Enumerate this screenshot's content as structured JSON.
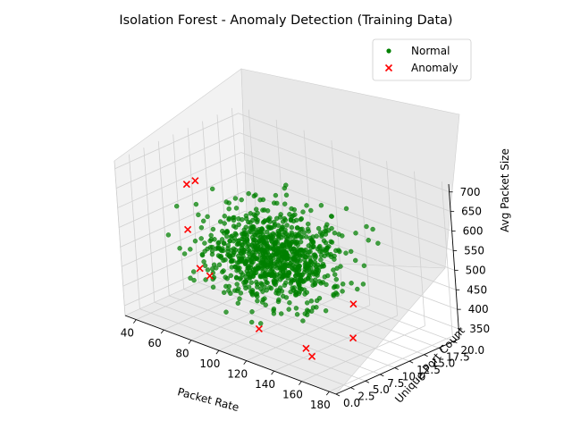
{
  "chart_data": {
    "type": "scatter3d",
    "title": "Isolation Forest - Anomaly Detection (Training Data)",
    "xlabel": "Packet Rate",
    "ylabel": "Unique Port Count",
    "zlabel": "Avg Packet Size",
    "xlim": [
      32,
      185
    ],
    "ylim": [
      0,
      21
    ],
    "zlim": [
      325,
      720
    ],
    "x_ticks": [
      40,
      60,
      80,
      100,
      120,
      140,
      160,
      180
    ],
    "y_ticks": [
      0.0,
      2.5,
      5.0,
      7.5,
      10.0,
      12.5,
      15.0,
      17.5,
      20.0
    ],
    "z_ticks": [
      350,
      400,
      450,
      500,
      550,
      600,
      650,
      700
    ],
    "legend_position": "top-right",
    "grid": true,
    "series": [
      {
        "name": "Normal",
        "marker": "circle",
        "color": "#008000",
        "n_points": 950,
        "sample_note": "",
        "points": [
          [
            101.5,
            9.3,
            502
          ],
          [
            106.2,
            10.6,
            455
          ],
          [
            94.8,
            11.2,
            478
          ],
          [
            112.3,
            8.9,
            521
          ],
          [
            99.1,
            12.4,
            489
          ],
          [
            88.6,
            9.7,
            512
          ],
          [
            115.4,
            10.1,
            468
          ],
          [
            103.7,
            7.8,
            495
          ],
          [
            97.2,
            11.8,
            533
          ],
          [
            109.9,
            9.4,
            441
          ],
          [
            92.3,
            10.9,
            506
          ],
          [
            118.8,
            11.5,
            488
          ],
          [
            85.4,
            8.6,
            470
          ],
          [
            104.5,
            13.1,
            517
          ],
          [
            111.1,
            9.9,
            549
          ],
          [
            96.7,
            7.2,
            462
          ],
          [
            100.9,
            10.4,
            584
          ],
          [
            122.6,
            9.1,
            497
          ],
          [
            90.2,
            12.7,
            452
          ],
          [
            107.8,
            11.3,
            530
          ]
        ]
      },
      {
        "name": "Anomaly",
        "marker": "x",
        "color": "#ff0000",
        "points": [
          [
            35,
            11,
            590
          ],
          [
            38,
            10,
            485
          ],
          [
            37,
            12,
            595
          ],
          [
            45,
            10,
            395
          ],
          [
            52,
            10,
            385
          ],
          [
            180,
            5,
            515
          ],
          [
            160,
            9,
            375
          ],
          [
            104,
            6,
            345
          ],
          [
            160,
            2,
            375
          ],
          [
            147,
            4,
            365
          ]
        ]
      }
    ]
  }
}
